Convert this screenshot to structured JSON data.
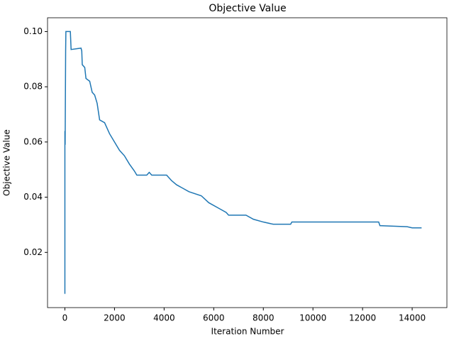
{
  "chart_data": {
    "type": "line",
    "title": "Objective Value",
    "x_label": "Iteration Number",
    "y_label": "Objective Value",
    "x": [
      0,
      0,
      10,
      30,
      40,
      200,
      220,
      250,
      650,
      680,
      700,
      800,
      850,
      1000,
      1100,
      1200,
      1300,
      1400,
      1600,
      1800,
      2000,
      2200,
      2400,
      2600,
      2800,
      2900,
      3300,
      3400,
      3500,
      4100,
      4300,
      4500,
      5000,
      5500,
      5800,
      6200,
      6500,
      6600,
      7300,
      7600,
      8000,
      8400,
      9100,
      9150,
      12650,
      12700,
      13800,
      14000,
      14380
    ],
    "series": [
      {
        "name": "Objective Value",
        "color": "#1f77b4",
        "values": [
          0.005,
          0.064,
          0.059,
          0.093,
          0.1,
          0.1,
          0.1,
          0.0935,
          0.094,
          0.093,
          0.088,
          0.087,
          0.083,
          0.082,
          0.078,
          0.077,
          0.074,
          0.068,
          0.067,
          0.063,
          0.06,
          0.057,
          0.055,
          0.052,
          0.0495,
          0.048,
          0.048,
          0.049,
          0.048,
          0.048,
          0.046,
          0.0445,
          0.042,
          0.0405,
          0.038,
          0.036,
          0.0345,
          0.0335,
          0.0335,
          0.032,
          0.031,
          0.0302,
          0.0302,
          0.031,
          0.031,
          0.0297,
          0.0293,
          0.0289,
          0.0289
        ]
      }
    ],
    "xlim": [
      -700,
      15400
    ],
    "ylim": [
      0.0,
      0.105
    ],
    "xticks": [
      0,
      2000,
      4000,
      6000,
      8000,
      10000,
      12000,
      14000
    ],
    "yticks": [
      0.02,
      0.04,
      0.06,
      0.08,
      {
        "value": 0.1,
        "label": "0.10"
      }
    ],
    "grid": false
  }
}
